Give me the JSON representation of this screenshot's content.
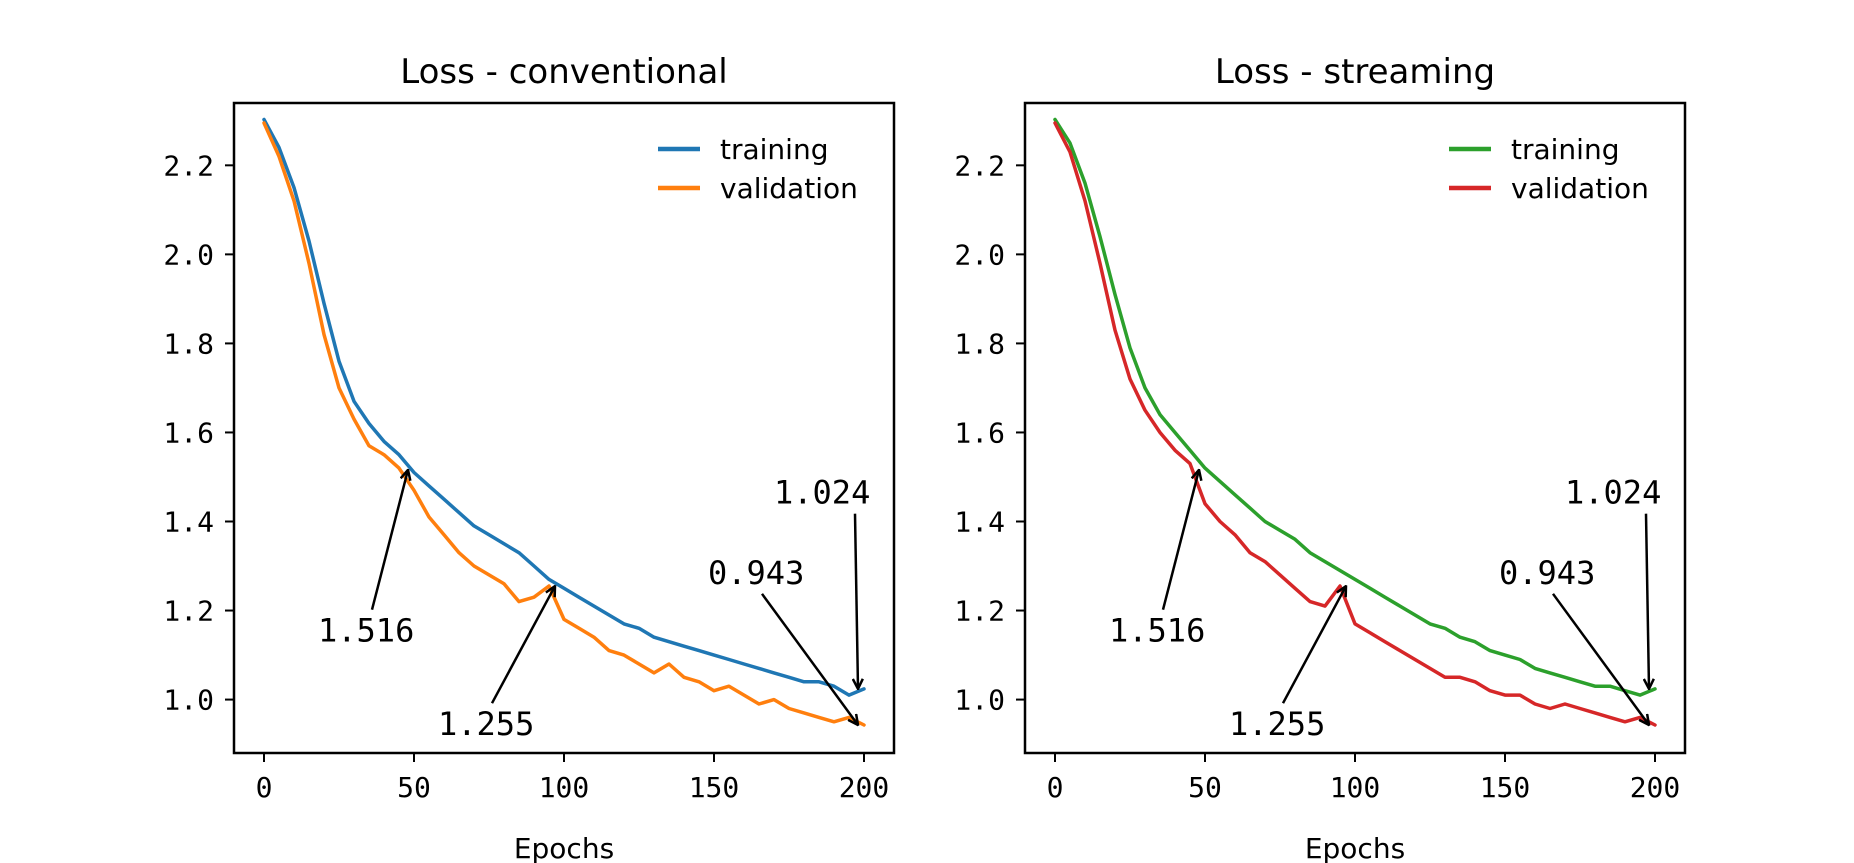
{
  "chart_data": [
    {
      "type": "line",
      "title": "Loss - conventional",
      "xlabel": "Epochs",
      "ylabel": "",
      "xlim": [
        -10,
        210
      ],
      "ylim": [
        0.88,
        2.34
      ],
      "xticks": [
        0,
        50,
        100,
        150,
        200
      ],
      "yticks": [
        1.0,
        1.2,
        1.4,
        1.6,
        1.8,
        2.0,
        2.2
      ],
      "ytick_labels": [
        "1.0",
        "1.2",
        "1.4",
        "1.6",
        "1.8",
        "2.0",
        "2.2"
      ],
      "legend_position": "top-right",
      "colors": {
        "training": "#1f77b4",
        "validation": "#ff7f0e"
      },
      "series": [
        {
          "name": "training",
          "color": "#1f77b4",
          "x": [
            0,
            5,
            10,
            15,
            20,
            25,
            30,
            35,
            40,
            45,
            50,
            55,
            60,
            65,
            70,
            75,
            80,
            85,
            90,
            95,
            100,
            105,
            110,
            115,
            120,
            125,
            130,
            135,
            140,
            145,
            150,
            155,
            160,
            165,
            170,
            175,
            180,
            185,
            190,
            195,
            200
          ],
          "y": [
            2.303,
            2.24,
            2.15,
            2.03,
            1.89,
            1.76,
            1.67,
            1.62,
            1.58,
            1.55,
            1.51,
            1.48,
            1.45,
            1.42,
            1.39,
            1.37,
            1.35,
            1.33,
            1.3,
            1.27,
            1.25,
            1.23,
            1.21,
            1.19,
            1.17,
            1.16,
            1.14,
            1.13,
            1.12,
            1.11,
            1.1,
            1.09,
            1.08,
            1.07,
            1.06,
            1.05,
            1.04,
            1.04,
            1.03,
            1.01,
            1.024
          ]
        },
        {
          "name": "validation",
          "color": "#ff7f0e",
          "x": [
            0,
            5,
            10,
            15,
            20,
            25,
            30,
            35,
            40,
            45,
            50,
            55,
            60,
            65,
            70,
            75,
            80,
            85,
            90,
            95,
            100,
            105,
            110,
            115,
            120,
            125,
            130,
            135,
            140,
            145,
            150,
            155,
            160,
            165,
            170,
            175,
            180,
            185,
            190,
            195,
            200
          ],
          "y": [
            2.295,
            2.22,
            2.12,
            1.98,
            1.82,
            1.7,
            1.63,
            1.57,
            1.55,
            1.52,
            1.47,
            1.41,
            1.37,
            1.33,
            1.3,
            1.28,
            1.26,
            1.22,
            1.23,
            1.255,
            1.18,
            1.16,
            1.14,
            1.11,
            1.1,
            1.08,
            1.06,
            1.08,
            1.05,
            1.04,
            1.02,
            1.03,
            1.01,
            0.99,
            1.0,
            0.98,
            0.97,
            0.96,
            0.95,
            0.96,
            0.943
          ]
        }
      ],
      "annotations": [
        {
          "text": "1.516",
          "x": 48,
          "y": 1.516,
          "text_x": 18,
          "text_y": 1.13
        },
        {
          "text": "1.255",
          "x": 97,
          "y": 1.255,
          "text_x": 58,
          "text_y": 0.92
        },
        {
          "text": "0.943",
          "x": 198,
          "y": 0.943,
          "text_x": 148,
          "text_y": 1.26
        },
        {
          "text": "1.024",
          "x": 198,
          "y": 1.024,
          "text_x": 170,
          "text_y": 1.44
        }
      ]
    },
    {
      "type": "line",
      "title": "Loss - streaming",
      "xlabel": "Epochs",
      "ylabel": "",
      "xlim": [
        -10,
        210
      ],
      "ylim": [
        0.88,
        2.34
      ],
      "xticks": [
        0,
        50,
        100,
        150,
        200
      ],
      "yticks": [
        1.0,
        1.2,
        1.4,
        1.6,
        1.8,
        2.0,
        2.2
      ],
      "ytick_labels": [
        "1.0",
        "1.2",
        "1.4",
        "1.6",
        "1.8",
        "2.0",
        "2.2"
      ],
      "legend_position": "top-right",
      "colors": {
        "training": "#2ca02c",
        "validation": "#d62728"
      },
      "series": [
        {
          "name": "training",
          "color": "#2ca02c",
          "x": [
            0,
            5,
            10,
            15,
            20,
            25,
            30,
            35,
            40,
            45,
            50,
            55,
            60,
            65,
            70,
            75,
            80,
            85,
            90,
            95,
            100,
            105,
            110,
            115,
            120,
            125,
            130,
            135,
            140,
            145,
            150,
            155,
            160,
            165,
            170,
            175,
            180,
            185,
            190,
            195,
            200
          ],
          "y": [
            2.303,
            2.25,
            2.16,
            2.04,
            1.91,
            1.79,
            1.7,
            1.64,
            1.6,
            1.56,
            1.52,
            1.49,
            1.46,
            1.43,
            1.4,
            1.38,
            1.36,
            1.33,
            1.31,
            1.29,
            1.27,
            1.25,
            1.23,
            1.21,
            1.19,
            1.17,
            1.16,
            1.14,
            1.13,
            1.11,
            1.1,
            1.09,
            1.07,
            1.06,
            1.05,
            1.04,
            1.03,
            1.03,
            1.02,
            1.01,
            1.024
          ]
        },
        {
          "name": "validation",
          "color": "#d62728",
          "x": [
            0,
            5,
            10,
            15,
            20,
            25,
            30,
            35,
            40,
            45,
            50,
            55,
            60,
            65,
            70,
            75,
            80,
            85,
            90,
            95,
            100,
            105,
            110,
            115,
            120,
            125,
            130,
            135,
            140,
            145,
            150,
            155,
            160,
            165,
            170,
            175,
            180,
            185,
            190,
            195,
            200
          ],
          "y": [
            2.295,
            2.23,
            2.12,
            1.98,
            1.83,
            1.72,
            1.65,
            1.6,
            1.56,
            1.53,
            1.44,
            1.4,
            1.37,
            1.33,
            1.31,
            1.28,
            1.25,
            1.22,
            1.21,
            1.255,
            1.17,
            1.15,
            1.13,
            1.11,
            1.09,
            1.07,
            1.05,
            1.05,
            1.04,
            1.02,
            1.01,
            1.01,
            0.99,
            0.98,
            0.99,
            0.98,
            0.97,
            0.96,
            0.95,
            0.96,
            0.943
          ]
        }
      ],
      "annotations": [
        {
          "text": "1.516",
          "x": 48,
          "y": 1.516,
          "text_x": 18,
          "text_y": 1.13
        },
        {
          "text": "1.255",
          "x": 97,
          "y": 1.255,
          "text_x": 58,
          "text_y": 0.92
        },
        {
          "text": "0.943",
          "x": 198,
          "y": 0.943,
          "text_x": 148,
          "text_y": 1.26
        },
        {
          "text": "1.024",
          "x": 198,
          "y": 1.024,
          "text_x": 170,
          "text_y": 1.44
        }
      ]
    }
  ]
}
